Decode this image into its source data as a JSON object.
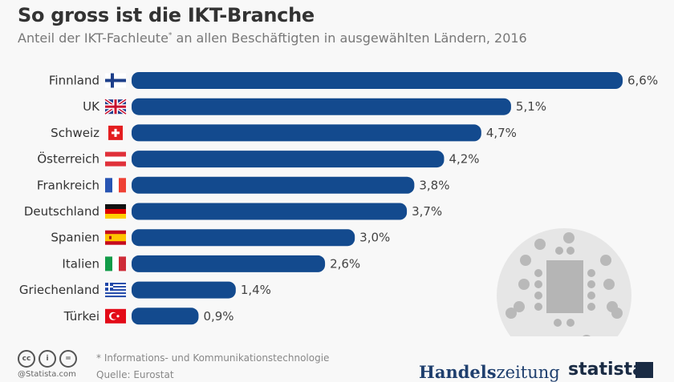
{
  "header": {
    "title": "So gross ist die IKT-Branche",
    "subtitle_pre": "Anteil der IKT-Fachleute",
    "subtitle_sup": "*",
    "subtitle_post": " an allen Beschäftigten in ausgewählten Ländern, 2016"
  },
  "chart_data": {
    "type": "bar",
    "orientation": "horizontal",
    "title": "So gross ist die IKT-Branche",
    "subtitle": "Anteil der IKT-Fachleute* an allen Beschäftigten in ausgewählten Ländern, 2016",
    "categories": [
      "Finnland",
      "UK",
      "Schweiz",
      "Österreich",
      "Frankreich",
      "Deutschland",
      "Spanien",
      "Italien",
      "Griechenland",
      "Türkei"
    ],
    "values": [
      6.6,
      5.1,
      4.7,
      4.2,
      3.8,
      3.7,
      3.0,
      2.6,
      1.4,
      0.9
    ],
    "value_labels": [
      "6,6%",
      "5,1%",
      "4,7%",
      "4,2%",
      "3,8%",
      "3,7%",
      "3,0%",
      "2,6%",
      "1,4%",
      "0,9%"
    ],
    "flags": [
      "finland-flag",
      "uk-flag",
      "switzerland-flag",
      "austria-flag",
      "france-flag",
      "germany-flag",
      "spain-flag",
      "italy-flag",
      "greece-flag",
      "turkey-flag"
    ],
    "unit": "%",
    "xlim": [
      0,
      6.6
    ],
    "grid": false,
    "bar_color": "#134a8e",
    "xlabel": "",
    "ylabel": ""
  },
  "footer": {
    "footnote": "* Informations- und Kommunikationstechnologie",
    "source": "Quelle: Eurostat",
    "statista_com": "@Statista.com",
    "cc_icons": [
      "cc",
      "i",
      "="
    ],
    "partner_a": "Handels",
    "partner_b": "zeitung",
    "brand": "statista"
  }
}
